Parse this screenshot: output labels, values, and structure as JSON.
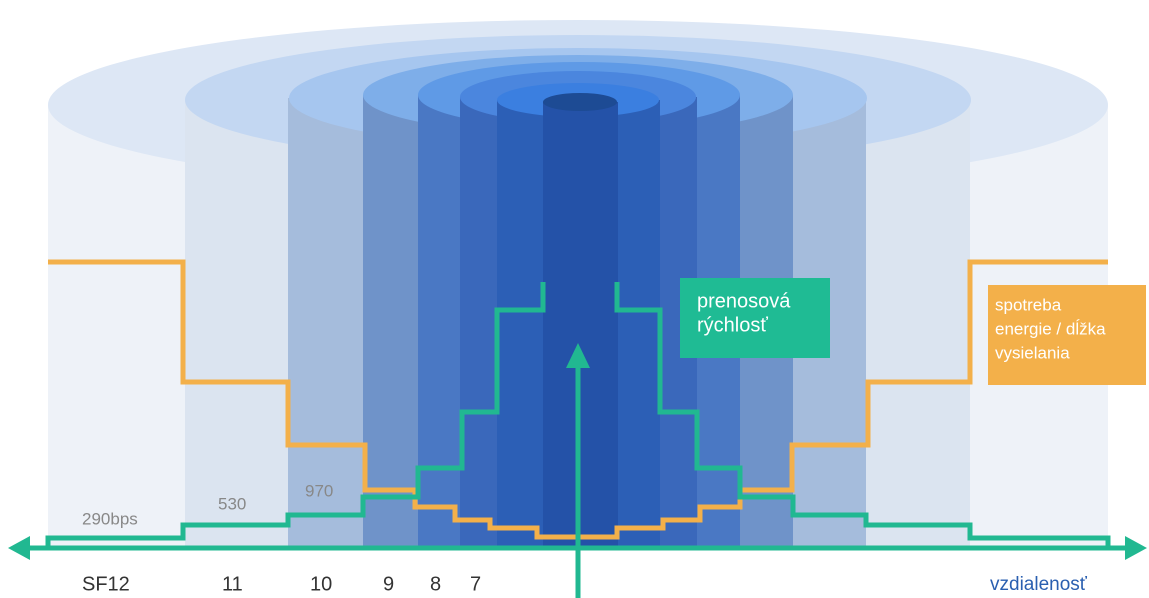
{
  "rate_labels": [
    "290bps",
    "530",
    "970"
  ],
  "rate_box": {
    "line1": "prenosová",
    "line2": "rýchlosť"
  },
  "energy_box": {
    "line1": "spotreba",
    "line2": "energie / dĺžka",
    "line3": "vysielania"
  },
  "sf_labels": [
    "SF12",
    "11",
    "10",
    "9",
    "8",
    "7"
  ],
  "x_axis_label": "vzdialenosť"
}
